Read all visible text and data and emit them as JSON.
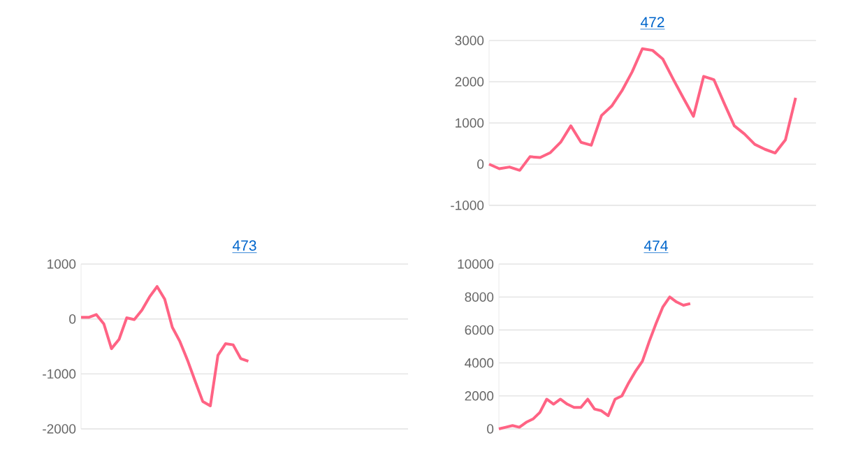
{
  "chart_data": [
    {
      "type": "line",
      "title": "472",
      "categories": [
        null,
        null,
        null,
        null,
        null,
        null,
        null,
        null,
        null,
        null,
        null,
        null,
        null,
        null,
        null,
        null,
        null,
        null,
        null,
        null,
        null,
        null,
        null,
        null,
        null,
        null,
        null,
        null,
        null,
        null,
        null,
        null,
        null
      ],
      "values": [
        0,
        -110,
        -70,
        -150,
        180,
        160,
        280,
        530,
        930,
        530,
        460,
        1180,
        1410,
        1780,
        2240,
        2800,
        2760,
        2550,
        2070,
        1610,
        1160,
        2130,
        2050,
        1480,
        930,
        730,
        480,
        360,
        270,
        590,
        1610,
        null,
        null
      ],
      "color": "#ff6384",
      "ylim": [
        -1000,
        3000
      ],
      "yticks": [
        -1000,
        0,
        1000,
        2000,
        3000
      ],
      "grid": "y",
      "tick_labels": "y"
    },
    {
      "type": "line",
      "title": "473",
      "categories": [
        null,
        null,
        null,
        null,
        null,
        null,
        null,
        null,
        null,
        null,
        null,
        null,
        null,
        null,
        null,
        null,
        null,
        null,
        null,
        null,
        null,
        null,
        null,
        null,
        null,
        null,
        null,
        null,
        null,
        null,
        null,
        null,
        null,
        null,
        null,
        null,
        null,
        null,
        null,
        null,
        null,
        null,
        null,
        null
      ],
      "values": [
        30,
        30,
        80,
        -90,
        -540,
        -370,
        20,
        -10,
        160,
        400,
        590,
        360,
        -150,
        -410,
        -750,
        -1130,
        -1500,
        -1580,
        -660,
        -450,
        -470,
        -720,
        -770,
        null,
        null,
        null,
        null,
        null,
        null,
        null,
        null,
        null,
        null,
        null,
        null,
        null,
        null,
        null,
        null,
        null,
        null,
        null,
        null,
        null
      ],
      "color": "#ff6384",
      "ylim": [
        -2000,
        1000
      ],
      "yticks": [
        -2000,
        -1000,
        0,
        1000
      ],
      "grid": "y",
      "tick_labels": "y"
    },
    {
      "type": "line",
      "title": "474",
      "categories": [
        null,
        null,
        null,
        null,
        null,
        null,
        null,
        null,
        null,
        null,
        null,
        null,
        null,
        null,
        null,
        null,
        null,
        null,
        null,
        null,
        null,
        null,
        null,
        null,
        null,
        null,
        null,
        null,
        null,
        null,
        null,
        null,
        null,
        null,
        null,
        null,
        null,
        null,
        null,
        null,
        null,
        null,
        null,
        null,
        null,
        null,
        null
      ],
      "values": [
        0,
        100,
        200,
        100,
        400,
        600,
        1000,
        1800,
        1500,
        1800,
        1500,
        1300,
        1300,
        1800,
        1200,
        1100,
        800,
        1800,
        2000,
        2800,
        3500,
        4100,
        5300,
        6400,
        7400,
        8000,
        7700,
        7500,
        7600,
        null,
        null,
        null,
        null,
        null,
        null,
        null,
        null,
        null,
        null,
        null,
        null,
        null,
        null,
        null,
        null,
        null,
        null
      ],
      "color": "#ff6384",
      "ylim": [
        0,
        10000
      ],
      "yticks": [
        0,
        2000,
        4000,
        6000,
        8000,
        10000
      ],
      "grid": "y",
      "tick_labels": "y"
    }
  ]
}
